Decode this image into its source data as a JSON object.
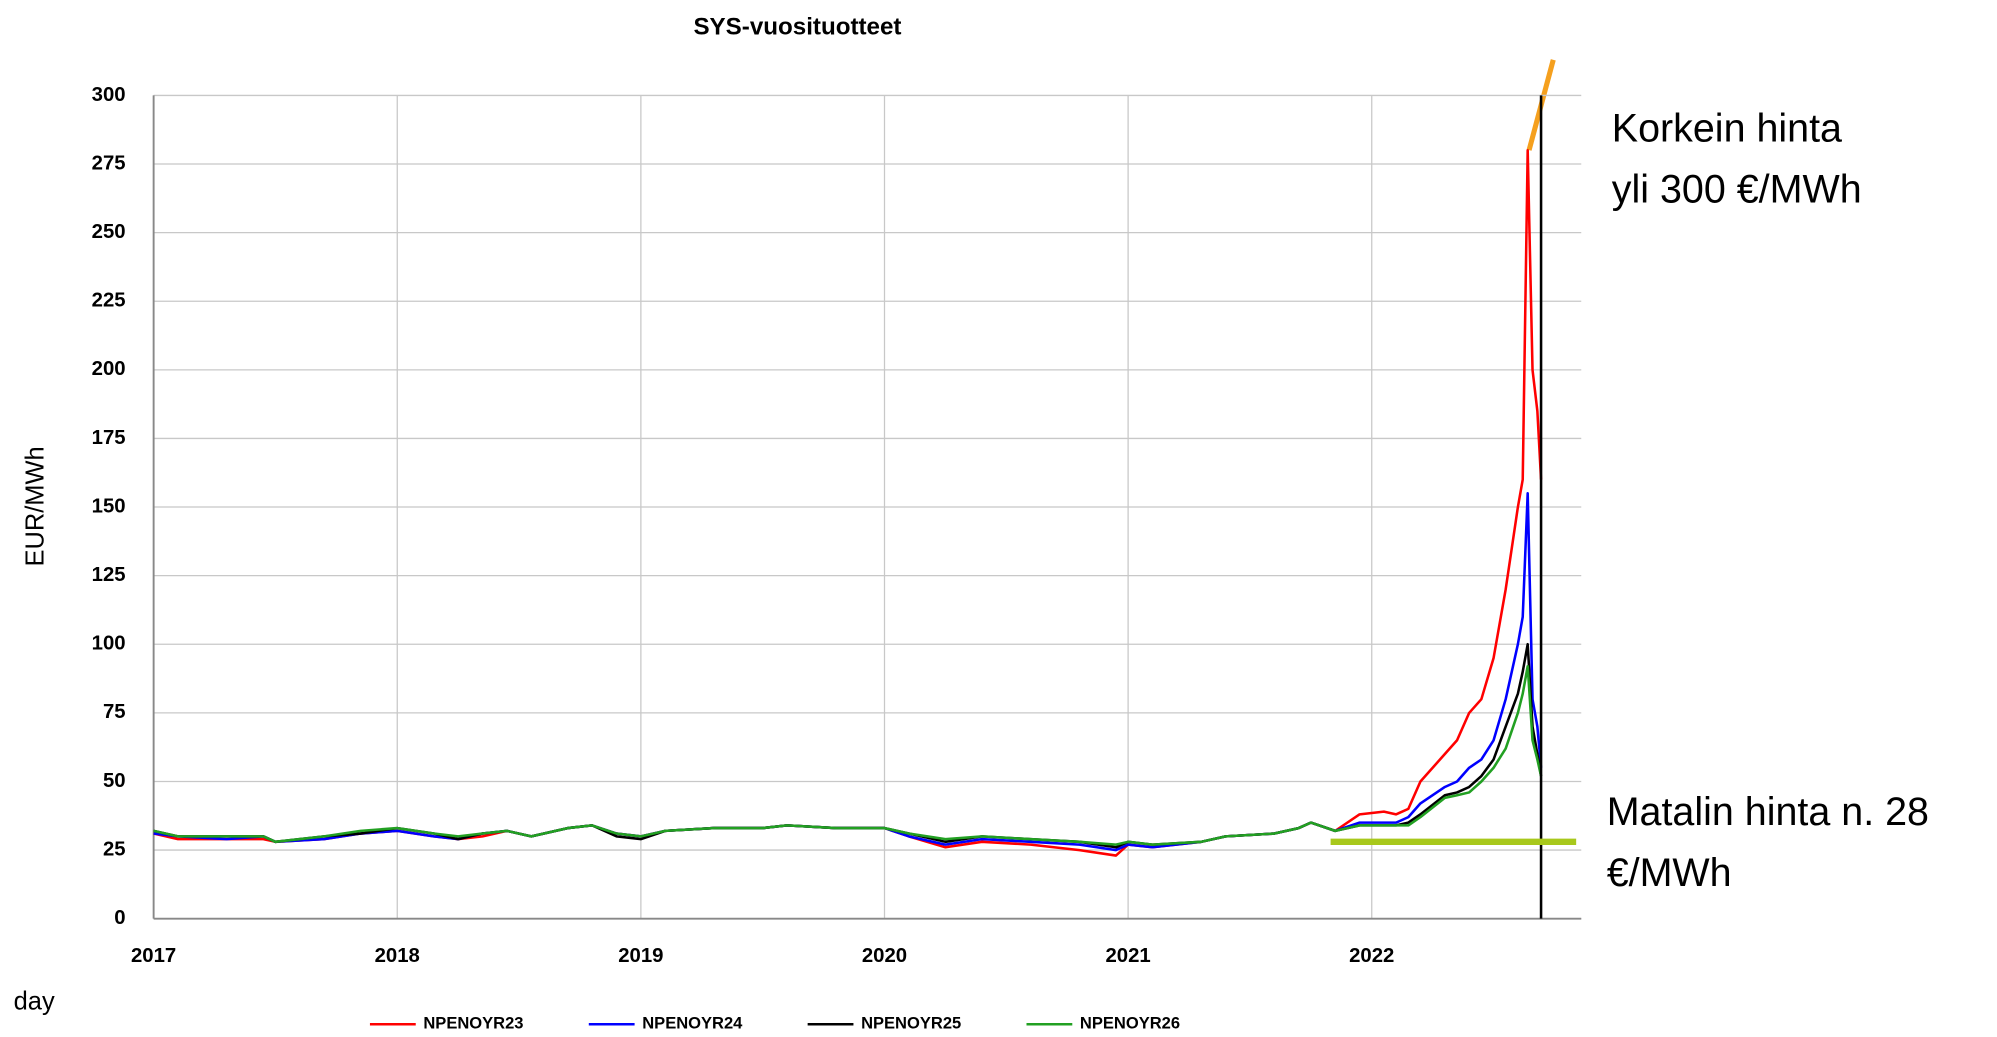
{
  "chart_data": {
    "type": "line",
    "title": "SYS-vuosituotteet",
    "ylabel": "EUR/MWh",
    "xlabel": "day",
    "x": [
      2017.0,
      2017.1,
      2017.3,
      2017.45,
      2017.5,
      2017.7,
      2017.85,
      2018.0,
      2018.15,
      2018.25,
      2018.35,
      2018.45,
      2018.55,
      2018.7,
      2018.8,
      2018.9,
      2019.0,
      2019.1,
      2019.3,
      2019.5,
      2019.6,
      2019.8,
      2020.0,
      2020.1,
      2020.25,
      2020.4,
      2020.6,
      2020.8,
      2020.95,
      2021.0,
      2021.1,
      2021.3,
      2021.4,
      2021.6,
      2021.7,
      2021.75,
      2021.85,
      2021.95,
      2022.05,
      2022.1,
      2022.15,
      2022.2,
      2022.3,
      2022.35,
      2022.4,
      2022.45,
      2022.5,
      2022.55,
      2022.6,
      2022.62,
      2022.64,
      2022.66,
      2022.68,
      2022.695
    ],
    "series": [
      {
        "name": "NPENOYR23",
        "color": "#ff0000",
        "values": [
          31,
          29,
          29,
          29,
          28,
          29,
          31,
          32,
          30,
          29,
          30,
          32,
          30,
          33,
          34,
          31,
          30,
          32,
          33,
          33,
          34,
          33,
          33,
          30,
          26,
          28,
          27,
          25,
          23,
          27,
          26,
          28,
          30,
          31,
          33,
          35,
          32,
          38,
          39,
          38,
          40,
          50,
          60,
          65,
          75,
          80,
          95,
          120,
          150,
          160,
          280,
          200,
          185,
          160
        ]
      },
      {
        "name": "NPENOYR24",
        "color": "#0000ff",
        "values": [
          31,
          30,
          29,
          30,
          28,
          29,
          31,
          32,
          30,
          29,
          31,
          32,
          30,
          33,
          34,
          31,
          30,
          32,
          33,
          33,
          34,
          33,
          33,
          30,
          27,
          29,
          28,
          27,
          25,
          27,
          26,
          28,
          30,
          31,
          33,
          35,
          32,
          35,
          35,
          35,
          37,
          42,
          48,
          50,
          55,
          58,
          65,
          80,
          100,
          110,
          155,
          80,
          70,
          55
        ]
      },
      {
        "name": "NPENOYR25",
        "color": "#000000",
        "values": [
          32,
          30,
          30,
          30,
          28,
          30,
          31,
          33,
          31,
          29,
          31,
          32,
          30,
          33,
          34,
          30,
          29,
          32,
          33,
          33,
          34,
          33,
          33,
          31,
          28,
          30,
          29,
          28,
          26,
          28,
          27,
          28,
          30,
          31,
          33,
          35,
          32,
          34,
          34,
          34,
          35,
          38,
          45,
          46,
          48,
          52,
          58,
          70,
          82,
          90,
          100,
          70,
          60,
          52
        ]
      },
      {
        "name": "NPENOYR26",
        "color": "#22a022",
        "values": [
          32,
          30,
          30,
          30,
          28,
          30,
          32,
          33,
          31,
          30,
          31,
          32,
          30,
          33,
          34,
          31,
          30,
          32,
          33,
          33,
          34,
          33,
          33,
          31,
          29,
          30,
          29,
          28,
          27,
          28,
          27,
          28,
          30,
          31,
          33,
          35,
          32,
          34,
          34,
          34,
          34,
          37,
          44,
          45,
          46,
          50,
          55,
          62,
          75,
          82,
          92,
          65,
          58,
          52
        ]
      }
    ],
    "xlim": [
      2017,
      2022.86
    ],
    "xticks": [
      2017,
      2018,
      2019,
      2020,
      2021,
      2022
    ],
    "ylim": [
      0,
      300
    ],
    "yticks": [
      0,
      25,
      50,
      75,
      100,
      125,
      150,
      175,
      200,
      225,
      250,
      275,
      300
    ],
    "grid": true,
    "annotations": [
      {
        "lines": [
          "Korkein hinta",
          "yli 300 €/MWh"
        ]
      },
      {
        "lines": [
          "Matalin hinta n. 28",
          "€/MWh"
        ],
        "value": 28,
        "color": "#a8c81c"
      }
    ]
  }
}
